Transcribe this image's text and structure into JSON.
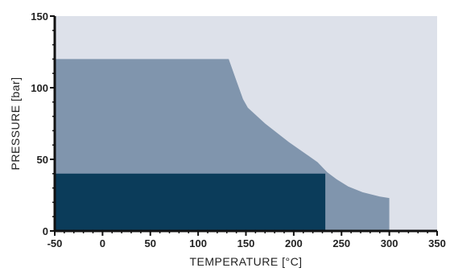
{
  "chart_data": {
    "type": "area",
    "xlabel": "TEMPERATURE [°C]",
    "ylabel": "PRESSURE [bar]",
    "xlim": [
      -50,
      350
    ],
    "ylim": [
      0,
      150
    ],
    "x_ticks": [
      -50,
      0,
      50,
      100,
      150,
      200,
      250,
      300,
      350
    ],
    "y_ticks": [
      0,
      50,
      100,
      150
    ],
    "grid": false,
    "colors": {
      "background": "#dde1ea",
      "outer_region": "#8095ad",
      "inner_region": "#0b3c5a",
      "axis": "#111111"
    },
    "series": [
      {
        "points": [
          [
            -50,
            0
          ],
          [
            -50,
            120
          ],
          [
            132,
            120
          ],
          [
            140,
            105
          ],
          [
            147,
            92
          ],
          [
            152,
            86
          ],
          [
            170,
            75
          ],
          [
            195,
            62
          ],
          [
            210,
            55
          ],
          [
            225,
            48
          ],
          [
            235,
            41
          ],
          [
            245,
            36
          ],
          [
            257,
            31
          ],
          [
            272,
            27
          ],
          [
            290,
            24
          ],
          [
            300,
            23
          ],
          [
            300,
            0
          ]
        ]
      },
      {
        "points": [
          [
            -50,
            0
          ],
          [
            -50,
            40
          ],
          [
            233,
            40
          ],
          [
            233,
            0
          ]
        ]
      }
    ]
  }
}
